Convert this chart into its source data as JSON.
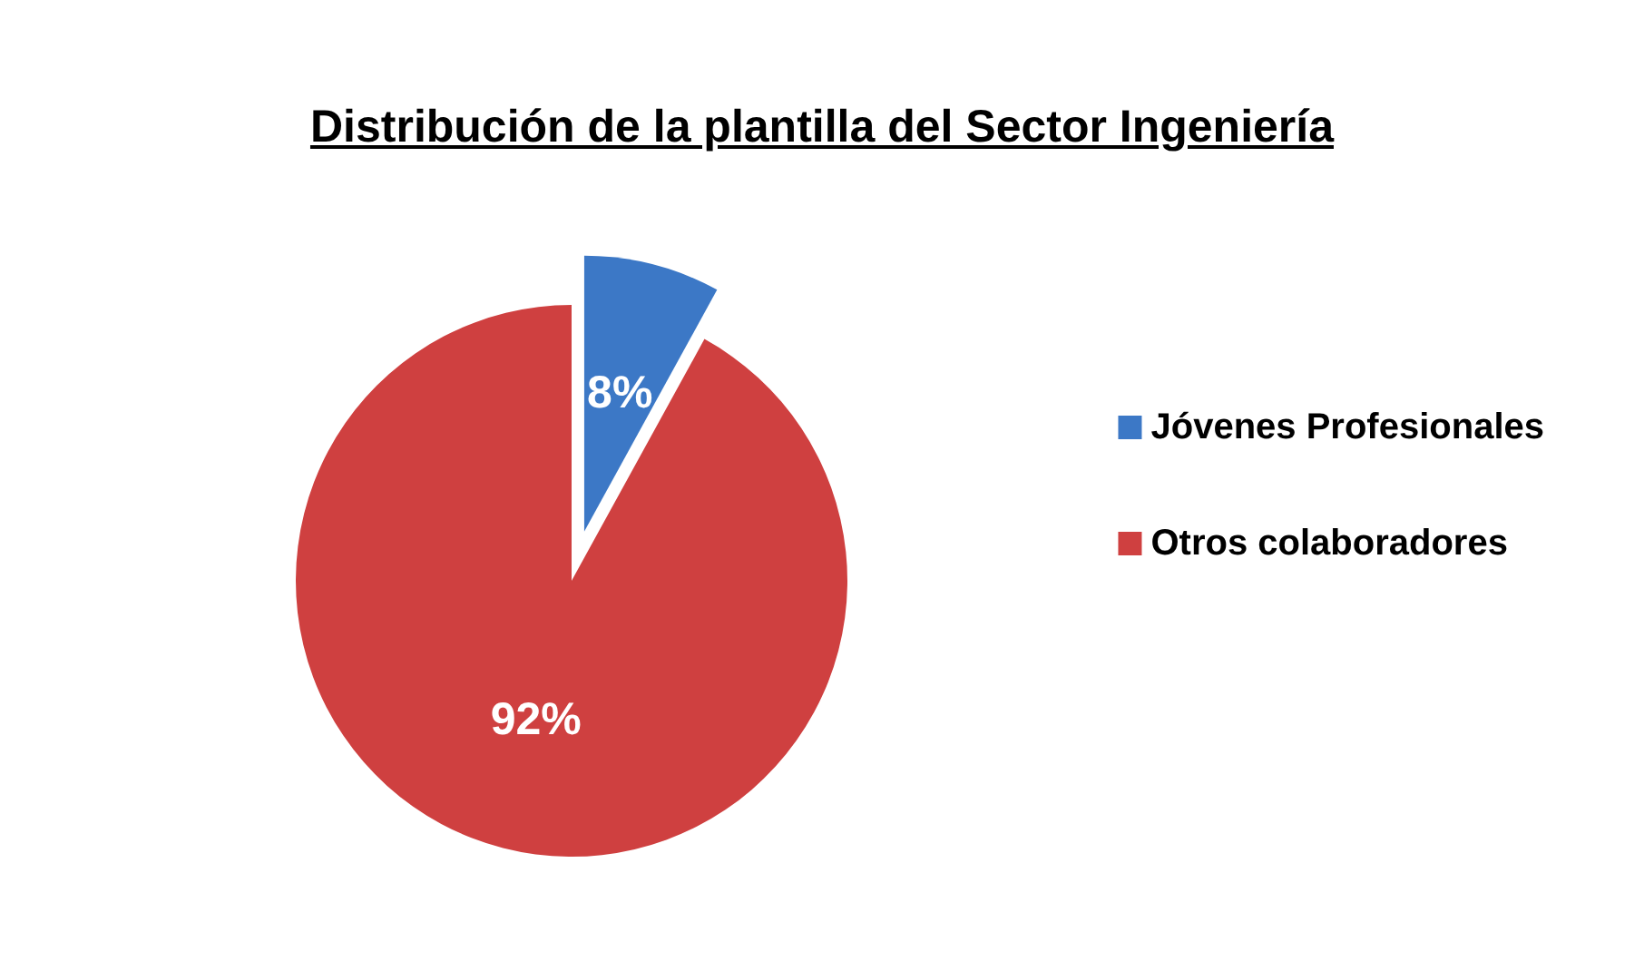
{
  "chart_data": {
    "type": "pie",
    "title": "Distribución de la plantilla del Sector Ingeniería",
    "categories": [
      "Jóvenes Profesionales",
      "Otros colaboradores"
    ],
    "values": [
      8,
      92
    ],
    "colors": [
      "#3c78c6",
      "#cf4040"
    ],
    "value_labels": [
      "8%",
      "92%"
    ],
    "legend": "right"
  }
}
